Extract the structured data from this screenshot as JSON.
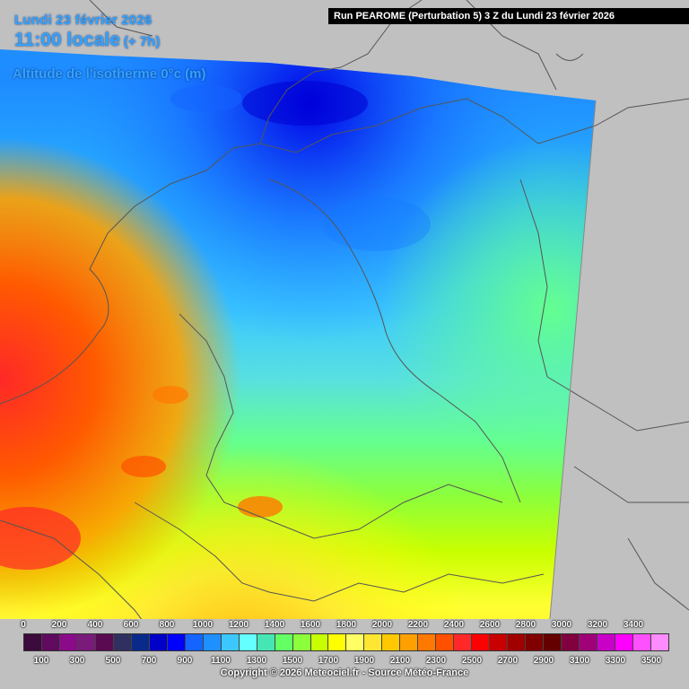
{
  "header": {
    "date": "Lundi 23 février 2026",
    "time": "11:00 locale",
    "offset": "(+ 7h)",
    "parameter": "Altitude de l'isotherme 0°c (m)",
    "run": "Run PEAROME (Perturbation 5) 3 Z du Lundi 23 février 2026"
  },
  "legend": {
    "unit": "m",
    "colors": [
      "#3c0a3c",
      "#600a60",
      "#8a0a8a",
      "#7a1a7a",
      "#5a0a50",
      "#303060",
      "#0a2a8a",
      "#0000c8",
      "#0000ff",
      "#1464ff",
      "#1e90ff",
      "#3cc8ff",
      "#64ffff",
      "#46e6b4",
      "#64ff64",
      "#8cff3c",
      "#c8ff00",
      "#ffff00",
      "#ffff64",
      "#ffe632",
      "#ffc800",
      "#ffa000",
      "#ff7800",
      "#ff5000",
      "#ff2828",
      "#ff0000",
      "#c80000",
      "#a00000",
      "#800000",
      "#640000",
      "#800040",
      "#a00078",
      "#c800c8",
      "#ff00ff",
      "#ff50ff",
      "#ff8cff"
    ],
    "upper_labels": [
      "0",
      "200",
      "400",
      "600",
      "800",
      "1000",
      "1200",
      "1400",
      "1600",
      "1800",
      "2000",
      "2200",
      "2400",
      "2600",
      "2800",
      "3000",
      "3200",
      "3400"
    ],
    "lower_labels": [
      "100",
      "300",
      "500",
      "700",
      "900",
      "1100",
      "1300",
      "1500",
      "1700",
      "1900",
      "2100",
      "2300",
      "2500",
      "2700",
      "2900",
      "3100",
      "3300",
      "3500"
    ]
  },
  "copyright": "Copyright © 2026 Meteociel.fr - Source Météo-France"
}
